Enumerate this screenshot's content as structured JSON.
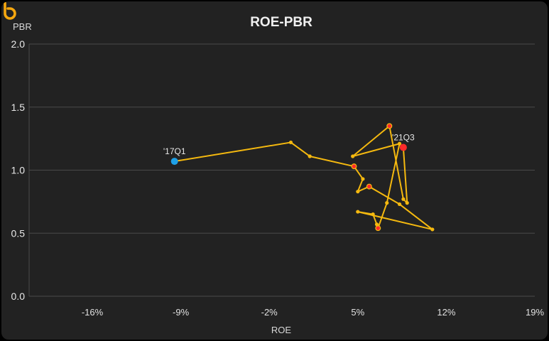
{
  "chart_data": {
    "type": "scatter",
    "title": "ROE-PBR",
    "xlabel": "ROE",
    "ylabel": "PBR",
    "xlim": [
      -21,
      19
    ],
    "ylim": [
      0,
      2.0
    ],
    "x_ticks": [
      "-16%",
      "-9%",
      "-2%",
      "5%",
      "12%",
      "19%"
    ],
    "x_tick_values": [
      -16,
      -9,
      -2,
      5,
      12,
      19
    ],
    "y_ticks": [
      "0.0",
      "0.5",
      "1.0",
      "1.5",
      "2.0"
    ],
    "y_tick_values": [
      0,
      0.5,
      1.0,
      1.5,
      2.0
    ],
    "grid": true,
    "line_color": "#f5b90f",
    "highlight_color": "#ff2a2a",
    "start_color": "#1ea0e6",
    "points": [
      {
        "x": -9.5,
        "y": 1.07,
        "role": "start",
        "label": "'17Q1"
      },
      {
        "x": -0.3,
        "y": 1.22
      },
      {
        "x": 1.2,
        "y": 1.11
      },
      {
        "x": 4.7,
        "y": 1.03,
        "role": "highlight"
      },
      {
        "x": 5.4,
        "y": 0.93
      },
      {
        "x": 5.0,
        "y": 0.83
      },
      {
        "x": 5.9,
        "y": 0.87,
        "role": "highlight"
      },
      {
        "x": 8.3,
        "y": 0.73
      },
      {
        "x": 10.9,
        "y": 0.53
      },
      {
        "x": 5.0,
        "y": 0.67
      },
      {
        "x": 6.2,
        "y": 0.65
      },
      {
        "x": 6.5,
        "y": 0.57
      },
      {
        "x": 6.6,
        "y": 0.54,
        "role": "highlight"
      },
      {
        "x": 7.3,
        "y": 0.74
      },
      {
        "x": 8.3,
        "y": 1.21
      },
      {
        "x": 4.6,
        "y": 1.11
      },
      {
        "x": 7.5,
        "y": 1.35,
        "role": "highlight"
      },
      {
        "x": 8.6,
        "y": 0.77
      },
      {
        "x": 8.9,
        "y": 0.74
      },
      {
        "x": 8.6,
        "y": 1.18,
        "role": "end",
        "label": "'21Q3"
      }
    ]
  }
}
